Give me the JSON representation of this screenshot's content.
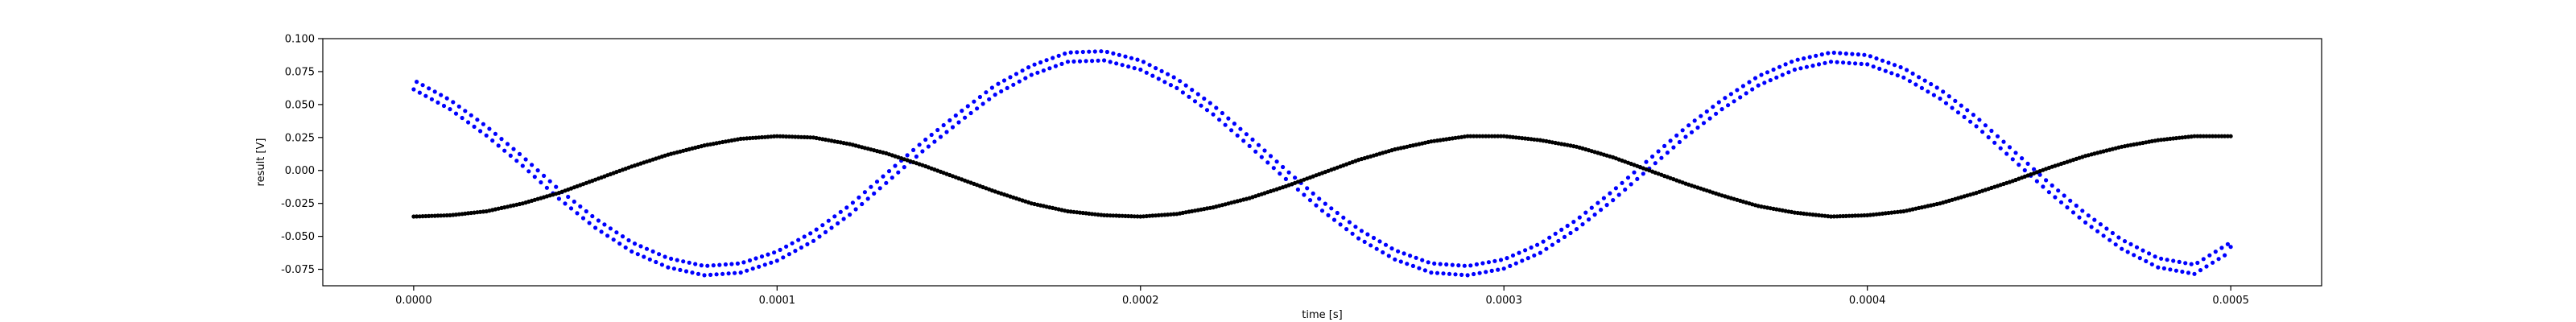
{
  "chart_data": {
    "type": "scatter",
    "title": "",
    "xlabel": "time [s]",
    "ylabel": "result [V]",
    "xlim": [
      -2.5e-05,
      0.000525
    ],
    "ylim": [
      -0.0875,
      0.1
    ],
    "xticks": [
      0.0,
      0.0001,
      0.0002,
      0.0003,
      0.0004,
      0.0005
    ],
    "xtick_labels": [
      "0.0000",
      "0.0001",
      "0.0002",
      "0.0003",
      "0.0004",
      "0.0005"
    ],
    "yticks": [
      -0.075,
      -0.05,
      -0.025,
      0.0,
      0.025,
      0.05,
      0.075,
      0.1
    ],
    "ytick_labels": [
      "-0.075",
      "-0.050",
      "-0.025",
      "0.000",
      "0.025",
      "0.050",
      "0.075",
      "0.100"
    ],
    "grid": false,
    "legend": "none",
    "series": [
      {
        "color": "#0000ff",
        "marker_size": 2.6,
        "x": [
          0.0,
          1e-05,
          2e-05,
          3e-05,
          4e-05,
          5e-05,
          6e-05,
          7e-05,
          8e-05,
          9e-05,
          0.0001,
          0.00011,
          0.00012,
          0.00013,
          0.00014,
          0.00015,
          0.00016,
          0.00017,
          0.00018,
          0.00019,
          0.0002,
          0.00021,
          0.00022,
          0.00023,
          0.00024,
          0.00025,
          0.00026,
          0.00027,
          0.00028,
          0.00029,
          0.0003,
          0.00031,
          0.00032,
          0.00033,
          0.00034,
          0.00035,
          0.00036,
          0.00037,
          0.00038,
          0.00039,
          0.0004,
          0.00041,
          0.00042,
          0.00043,
          0.00044,
          0.00045,
          0.00046,
          0.00047,
          0.00048,
          0.00049,
          0.0005
        ],
        "y": [
          0.065,
          0.05,
          0.03,
          0.007,
          -0.018,
          -0.04,
          -0.058,
          -0.07,
          -0.076,
          -0.074,
          -0.065,
          -0.05,
          -0.03,
          -0.006,
          0.018,
          0.04,
          0.061,
          0.076,
          0.086,
          0.087,
          0.08,
          0.066,
          0.046,
          0.022,
          -0.003,
          -0.027,
          -0.048,
          -0.064,
          -0.074,
          -0.076,
          -0.071,
          -0.059,
          -0.041,
          -0.019,
          0.005,
          0.029,
          0.05,
          0.068,
          0.08,
          0.086,
          0.084,
          0.074,
          0.058,
          0.037,
          0.012,
          -0.013,
          -0.036,
          -0.056,
          -0.07,
          -0.075,
          -0.058
        ]
      },
      {
        "color": "#000000",
        "marker_size": 2.6,
        "x": [
          0.0,
          1e-05,
          2e-05,
          3e-05,
          4e-05,
          5e-05,
          6e-05,
          7e-05,
          8e-05,
          9e-05,
          0.0001,
          0.00011,
          0.00012,
          0.00013,
          0.00014,
          0.00015,
          0.00016,
          0.00017,
          0.00018,
          0.00019,
          0.0002,
          0.00021,
          0.00022,
          0.00023,
          0.00024,
          0.00025,
          0.00026,
          0.00027,
          0.00028,
          0.00029,
          0.0003,
          0.00031,
          0.00032,
          0.00033,
          0.00034,
          0.00035,
          0.00036,
          0.00037,
          0.00038,
          0.00039,
          0.0004,
          0.00041,
          0.00042,
          0.00043,
          0.00044,
          0.00045,
          0.00046,
          0.00047,
          0.00048,
          0.00049,
          0.0005
        ],
        "y": [
          -0.035,
          -0.034,
          -0.031,
          -0.025,
          -0.017,
          -0.007,
          0.003,
          0.012,
          0.019,
          0.024,
          0.026,
          0.025,
          0.02,
          0.013,
          0.004,
          -0.006,
          -0.016,
          -0.025,
          -0.031,
          -0.034,
          -0.035,
          -0.033,
          -0.028,
          -0.021,
          -0.012,
          -0.002,
          0.008,
          0.016,
          0.022,
          0.026,
          0.026,
          0.023,
          0.018,
          0.01,
          0.0,
          -0.01,
          -0.019,
          -0.027,
          -0.032,
          -0.035,
          -0.034,
          -0.031,
          -0.025,
          -0.017,
          -0.008,
          0.002,
          0.011,
          0.018,
          0.023,
          0.026,
          0.026
        ]
      }
    ]
  }
}
